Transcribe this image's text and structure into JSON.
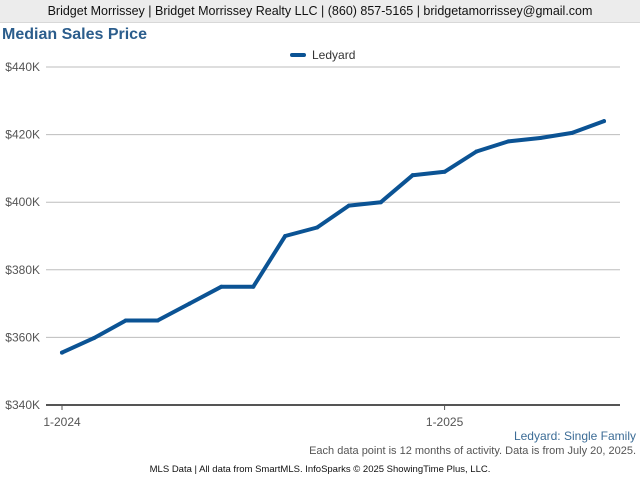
{
  "header": {
    "contact": "Bridget Morrissey | Bridget Morrissey Realty LLC | (860) 857-5165 | bridgetamorrissey@gmail.com"
  },
  "chart_data": {
    "type": "line",
    "title": "Median Sales Price",
    "subtitle": "Ledyard: Single Family",
    "xlabel": "",
    "ylabel": "",
    "x_tick_labels": [
      "1-2024",
      "1-2025"
    ],
    "x": [
      "1-2024",
      "2-2024",
      "3-2024",
      "4-2024",
      "5-2024",
      "6-2024",
      "7-2024",
      "8-2024",
      "9-2024",
      "10-2024",
      "11-2024",
      "12-2024",
      "1-2025",
      "2-2025",
      "3-2025",
      "4-2025",
      "5-2025",
      "6-2025"
    ],
    "y_ticks": [
      340000,
      360000,
      380000,
      400000,
      420000,
      440000
    ],
    "y_tick_labels": [
      "$340K",
      "$360K",
      "$380K",
      "$400K",
      "$420K",
      "$440K"
    ],
    "ylim": [
      340000,
      440000
    ],
    "grid": "horizontal",
    "legend_position": "top-center",
    "series": [
      {
        "name": "Ledyard",
        "color": "#0b5394",
        "values": [
          355500,
          359800,
          365000,
          365000,
          370000,
          375000,
          375000,
          390000,
          392500,
          399000,
          400000,
          408000,
          409000,
          415000,
          418000,
          419000,
          420500,
          424000
        ]
      }
    ]
  },
  "notes": {
    "data_note": "Each data point is 12 months of activity. Data is from July 20, 2025.",
    "footer": "MLS Data | All data from SmartMLS. InfoSparks © 2025 ShowingTime Plus, LLC."
  }
}
